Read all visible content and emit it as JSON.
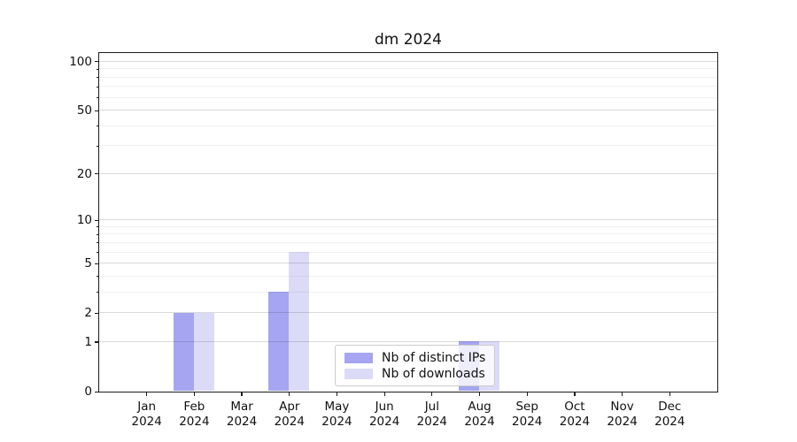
{
  "chart_data": {
    "type": "bar",
    "title": "dm 2024",
    "grid": "horizontal-major-and-minor",
    "legend_position": "lower center inside plot",
    "categories": [
      {
        "month": "Jan",
        "year": "2024"
      },
      {
        "month": "Feb",
        "year": "2024"
      },
      {
        "month": "Mar",
        "year": "2024"
      },
      {
        "month": "Apr",
        "year": "2024"
      },
      {
        "month": "May",
        "year": "2024"
      },
      {
        "month": "Jun",
        "year": "2024"
      },
      {
        "month": "Jul",
        "year": "2024"
      },
      {
        "month": "Aug",
        "year": "2024"
      },
      {
        "month": "Sep",
        "year": "2024"
      },
      {
        "month": "Oct",
        "year": "2024"
      },
      {
        "month": "Nov",
        "year": "2024"
      },
      {
        "month": "Dec",
        "year": "2024"
      }
    ],
    "series": [
      {
        "name": "Nb of distinct IPs",
        "color": "#a5a5f1",
        "values": [
          0,
          2,
          0,
          3,
          0,
          0,
          0,
          1,
          0,
          0,
          0,
          0
        ]
      },
      {
        "name": "Nb of downloads",
        "color": "#dbdbf8",
        "values": [
          0,
          2,
          0,
          6,
          0,
          0,
          0,
          1,
          0,
          0,
          0,
          0
        ]
      }
    ],
    "y_axis": {
      "scale": "log1p",
      "min": 0,
      "max": 113,
      "major_ticks": [
        {
          "value": 100,
          "label": "100"
        },
        {
          "value": 50,
          "label": "50"
        },
        {
          "value": 20,
          "label": "20"
        },
        {
          "value": 10,
          "label": "10"
        },
        {
          "value": 5,
          "label": "5"
        },
        {
          "value": 2,
          "label": "2"
        },
        {
          "value": 1,
          "label": "1"
        },
        {
          "value": 0,
          "label": "0"
        }
      ],
      "minor_gridlines": [
        3,
        4,
        6,
        7,
        8,
        9,
        30,
        40,
        60,
        70,
        80,
        90
      ]
    }
  }
}
